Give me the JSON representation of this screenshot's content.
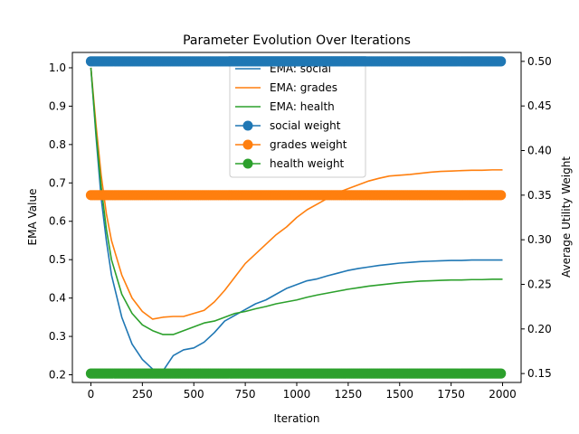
{
  "chart_data": {
    "type": "line",
    "title": "Parameter Evolution Over Iterations",
    "xlabel": "Iteration",
    "ylabel_left": "EMA Value",
    "ylabel_right": "Average Utility Weight",
    "xlim": [
      -90,
      2090
    ],
    "ylim_left": [
      0.18,
      1.04
    ],
    "ylim_right": [
      0.14,
      0.51
    ],
    "x_ticks": [
      0,
      250,
      500,
      750,
      1000,
      1250,
      1500,
      1750,
      2000
    ],
    "y_ticks_left": [
      0.2,
      0.3,
      0.4,
      0.5,
      0.6,
      0.7,
      0.8,
      0.9,
      1.0
    ],
    "y_ticks_right": [
      0.15,
      0.2,
      0.25,
      0.3,
      0.35,
      0.4,
      0.45,
      0.5
    ],
    "x_tick_labels": [
      "0",
      "250",
      "500",
      "750",
      "1000",
      "1250",
      "1500",
      "1750",
      "2000"
    ],
    "y_tick_labels_left": [
      "0.2",
      "0.3",
      "0.4",
      "0.5",
      "0.6",
      "0.7",
      "0.8",
      "0.9",
      "1.0"
    ],
    "y_tick_labels_right": [
      "0.15",
      "0.20",
      "0.25",
      "0.30",
      "0.35",
      "0.40",
      "0.45",
      "0.50"
    ],
    "grid": false,
    "legend_position": "top-center",
    "ema_series": [
      {
        "name": "EMA: social",
        "color": "#1f77b4",
        "axis": "left",
        "x": [
          0,
          25,
          50,
          75,
          100,
          150,
          200,
          250,
          300,
          350,
          400,
          450,
          500,
          550,
          600,
          650,
          700,
          750,
          800,
          850,
          900,
          950,
          1000,
          1050,
          1100,
          1150,
          1200,
          1250,
          1300,
          1350,
          1400,
          1450,
          1500,
          1550,
          1600,
          1650,
          1700,
          1750,
          1800,
          1850,
          1900,
          1950,
          2000
        ],
        "y": [
          1.0,
          0.82,
          0.66,
          0.55,
          0.46,
          0.35,
          0.28,
          0.24,
          0.215,
          0.21,
          0.25,
          0.265,
          0.27,
          0.285,
          0.31,
          0.34,
          0.355,
          0.37,
          0.385,
          0.395,
          0.41,
          0.425,
          0.435,
          0.445,
          0.45,
          0.458,
          0.465,
          0.472,
          0.477,
          0.481,
          0.485,
          0.488,
          0.491,
          0.493,
          0.495,
          0.496,
          0.497,
          0.498,
          0.498,
          0.499,
          0.499,
          0.499,
          0.499
        ]
      },
      {
        "name": "EMA: grades",
        "color": "#ff7f0e",
        "axis": "left",
        "x": [
          0,
          25,
          50,
          75,
          100,
          150,
          200,
          250,
          300,
          350,
          400,
          450,
          500,
          550,
          600,
          650,
          700,
          750,
          800,
          850,
          900,
          950,
          1000,
          1050,
          1100,
          1150,
          1200,
          1250,
          1300,
          1350,
          1400,
          1450,
          1500,
          1550,
          1600,
          1650,
          1700,
          1750,
          1800,
          1850,
          1900,
          1950,
          2000
        ],
        "y": [
          1.0,
          0.85,
          0.72,
          0.62,
          0.55,
          0.46,
          0.4,
          0.365,
          0.345,
          0.35,
          0.352,
          0.352,
          0.36,
          0.368,
          0.39,
          0.42,
          0.455,
          0.49,
          0.515,
          0.54,
          0.565,
          0.585,
          0.61,
          0.63,
          0.645,
          0.66,
          0.675,
          0.685,
          0.695,
          0.705,
          0.712,
          0.718,
          0.72,
          0.722,
          0.725,
          0.728,
          0.73,
          0.731,
          0.732,
          0.733,
          0.733,
          0.734,
          0.734
        ]
      },
      {
        "name": "EMA: health",
        "color": "#2ca02c",
        "axis": "left",
        "x": [
          0,
          25,
          50,
          75,
          100,
          150,
          200,
          250,
          300,
          350,
          400,
          450,
          500,
          550,
          600,
          650,
          700,
          750,
          800,
          850,
          900,
          950,
          1000,
          1050,
          1100,
          1150,
          1200,
          1250,
          1300,
          1350,
          1400,
          1450,
          1500,
          1550,
          1600,
          1650,
          1700,
          1750,
          1800,
          1850,
          1900,
          1950,
          2000
        ],
        "y": [
          1.0,
          0.83,
          0.69,
          0.58,
          0.5,
          0.41,
          0.36,
          0.33,
          0.315,
          0.305,
          0.305,
          0.315,
          0.325,
          0.335,
          0.34,
          0.35,
          0.36,
          0.365,
          0.372,
          0.378,
          0.385,
          0.39,
          0.395,
          0.402,
          0.408,
          0.413,
          0.418,
          0.423,
          0.427,
          0.431,
          0.434,
          0.437,
          0.44,
          0.442,
          0.444,
          0.445,
          0.446,
          0.447,
          0.447,
          0.448,
          0.448,
          0.449,
          0.449
        ]
      }
    ],
    "weight_series": [
      {
        "name": "social weight",
        "color": "#1f77b4",
        "axis": "right",
        "x_range": [
          0,
          2000
        ],
        "value": 0.5
      },
      {
        "name": "grades weight",
        "color": "#ff7f0e",
        "axis": "right",
        "x_range": [
          0,
          2000
        ],
        "value": 0.35
      },
      {
        "name": "health weight",
        "color": "#2ca02c",
        "axis": "right",
        "x_range": [
          0,
          2000
        ],
        "value": 0.15
      }
    ]
  }
}
